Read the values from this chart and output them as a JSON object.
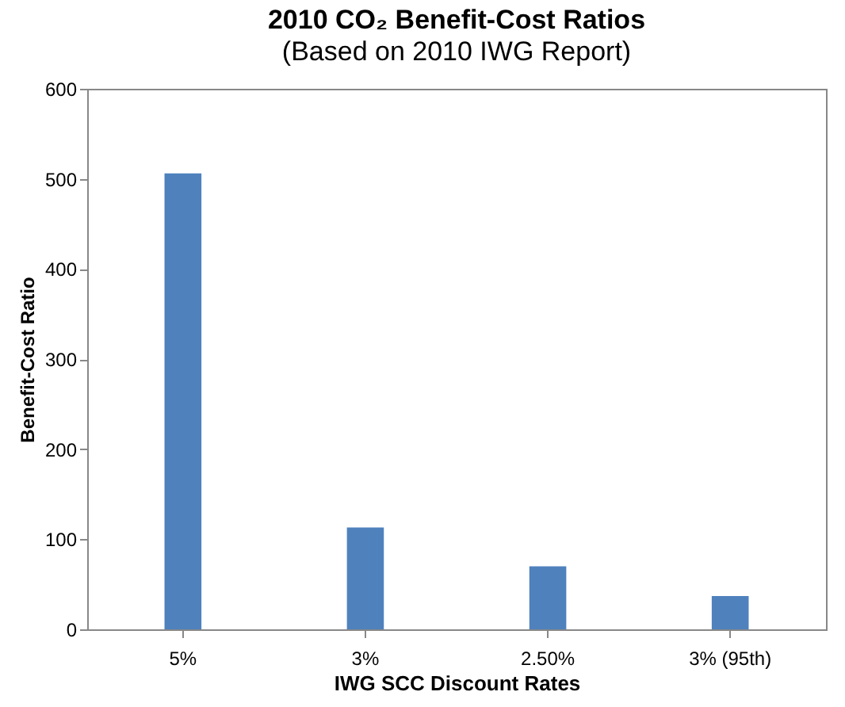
{
  "chart_data": {
    "type": "bar",
    "title": "2010 CO₂ Benefit-Cost Ratios",
    "subtitle": "(Based on 2010 IWG Report)",
    "xlabel": "IWG SCC Discount Rates",
    "ylabel": "Benefit-Cost Ratio",
    "categories": [
      "5%",
      "3%",
      "2.50%",
      "3% (95th)"
    ],
    "values": [
      506,
      113,
      70,
      37
    ],
    "color": "#4f81bd",
    "ylim": [
      0,
      600
    ],
    "yticks": [
      0,
      100,
      200,
      300,
      400,
      500,
      600
    ],
    "grid": false
  }
}
